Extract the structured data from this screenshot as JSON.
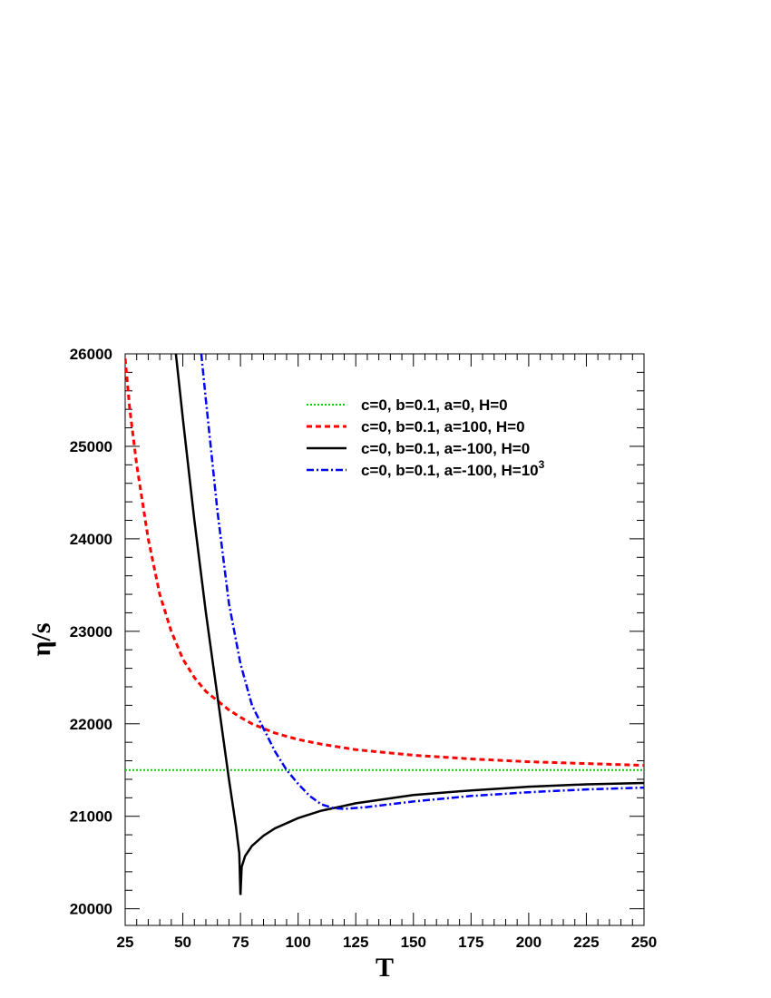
{
  "chart_data": {
    "type": "line",
    "xlabel": "T",
    "ylabel": "η/s",
    "xlim": [
      25,
      250
    ],
    "ylim": [
      19820,
      26000
    ],
    "xticks": [
      25,
      50,
      75,
      100,
      125,
      150,
      175,
      200,
      225,
      250
    ],
    "xtick_labels": [
      "25",
      "50",
      "75",
      "100",
      "125",
      "150",
      "175",
      "200",
      "225",
      "250"
    ],
    "yticks": [
      20000,
      21000,
      22000,
      23000,
      24000,
      25000,
      26000
    ],
    "ytick_labels": [
      "20000",
      "21000",
      "22000",
      "23000",
      "24000",
      "25000",
      "26000"
    ],
    "grid": false,
    "legend_position": "top-right",
    "series": [
      {
        "name": "c=0, b=0.1, a=0, H=0",
        "color": "#00cc00",
        "dash": "dotted",
        "points": [
          [
            25,
            21500
          ],
          [
            250,
            21500
          ]
        ]
      },
      {
        "name": "c=0, b=0.1, a=100, H=0",
        "color": "#ff0000",
        "dash": "dashed",
        "points": [
          [
            25,
            25950
          ],
          [
            27,
            25400
          ],
          [
            30,
            24800
          ],
          [
            35,
            24000
          ],
          [
            40,
            23400
          ],
          [
            45,
            23000
          ],
          [
            50,
            22700
          ],
          [
            55,
            22500
          ],
          [
            60,
            22350
          ],
          [
            65,
            22250
          ],
          [
            70,
            22150
          ],
          [
            75,
            22070
          ],
          [
            80,
            22000
          ],
          [
            90,
            21900
          ],
          [
            100,
            21830
          ],
          [
            110,
            21780
          ],
          [
            125,
            21720
          ],
          [
            150,
            21660
          ],
          [
            175,
            21620
          ],
          [
            200,
            21590
          ],
          [
            225,
            21570
          ],
          [
            250,
            21550
          ]
        ]
      },
      {
        "name": "c=0, b=0.1, a=-100, H=0",
        "color": "#000000",
        "dash": "solid",
        "points": [
          [
            47,
            26000
          ],
          [
            50,
            25300
          ],
          [
            55,
            24200
          ],
          [
            60,
            23200
          ],
          [
            65,
            22300
          ],
          [
            70,
            21400
          ],
          [
            73,
            20900
          ],
          [
            74.5,
            20600
          ],
          [
            75,
            20150
          ],
          [
            75.5,
            20450
          ],
          [
            77,
            20570
          ],
          [
            80,
            20680
          ],
          [
            85,
            20790
          ],
          [
            90,
            20870
          ],
          [
            100,
            20980
          ],
          [
            110,
            21060
          ],
          [
            125,
            21140
          ],
          [
            150,
            21230
          ],
          [
            175,
            21280
          ],
          [
            200,
            21320
          ],
          [
            225,
            21345
          ],
          [
            250,
            21360
          ]
        ]
      },
      {
        "name": "c=0, b=0.1, a=-100, H=10",
        "name_superscript": "3",
        "color": "#0000ff",
        "dash": "dashdot",
        "points": [
          [
            58,
            26000
          ],
          [
            60,
            25500
          ],
          [
            65,
            24300
          ],
          [
            70,
            23300
          ],
          [
            75,
            22650
          ],
          [
            80,
            22200
          ],
          [
            85,
            21950
          ],
          [
            90,
            21700
          ],
          [
            95,
            21500
          ],
          [
            100,
            21350
          ],
          [
            105,
            21220
          ],
          [
            110,
            21130
          ],
          [
            115,
            21090
          ],
          [
            120,
            21080
          ],
          [
            130,
            21100
          ],
          [
            150,
            21160
          ],
          [
            175,
            21220
          ],
          [
            200,
            21260
          ],
          [
            225,
            21290
          ],
          [
            250,
            21310
          ]
        ]
      }
    ]
  }
}
